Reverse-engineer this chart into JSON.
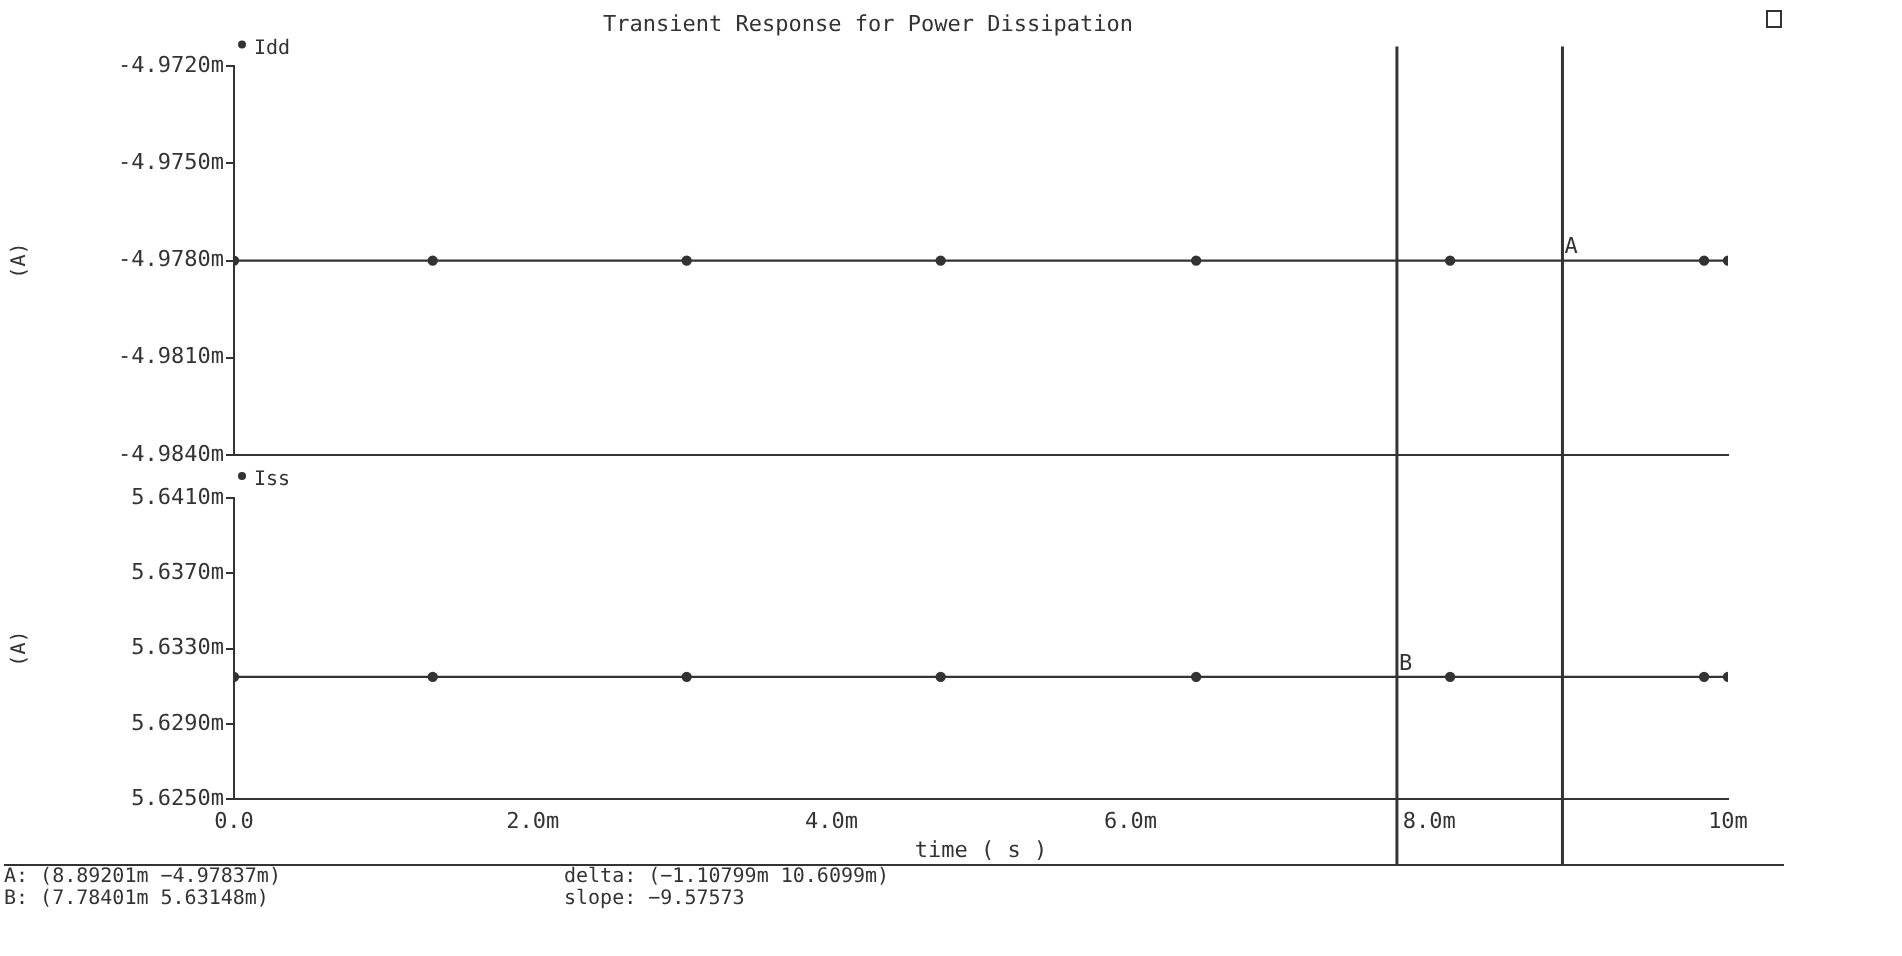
{
  "chart_data": [
    {
      "type": "line",
      "title": "Transient Response for Power Dissipation",
      "ylabel": "(A)",
      "series": [
        {
          "name": "Idd",
          "color": "#333333",
          "x": [
            0,
            1.33,
            3.03,
            4.73,
            6.44,
            8.14,
            9.84,
            10
          ],
          "values": [
            -4.978,
            -4.978,
            -4.978,
            -4.978,
            -4.978,
            -4.978,
            -4.978,
            -4.978
          ]
        }
      ],
      "xlim": [
        0,
        10
      ],
      "xticks": [
        {
          "value": 0,
          "label": null
        },
        {
          "value": 2,
          "label": null
        },
        {
          "value": 4,
          "label": null
        },
        {
          "value": 6,
          "label": null
        },
        {
          "value": 8,
          "label": null
        },
        {
          "value": 10,
          "label": null
        }
      ],
      "ylim": [
        -4.984,
        -4.972
      ],
      "yticks": [
        {
          "value": -4.984,
          "label": "-4.9840m"
        },
        {
          "value": -4.981,
          "label": "-4.9810m"
        },
        {
          "value": -4.978,
          "label": "-4.9780m"
        },
        {
          "value": -4.975,
          "label": "-4.9750m"
        },
        {
          "value": -4.972,
          "label": "-4.9720m"
        }
      ],
      "ref_lines": [
        {
          "axis": "x",
          "value": 7.784,
          "color": "#333333"
        },
        {
          "axis": "x",
          "value": 8.892,
          "color": "#333333"
        }
      ],
      "annotations": [
        {
          "text": "A",
          "x": 8.892,
          "y": -4.978
        }
      ],
      "tick_labels": "y",
      "legend": "top left",
      "marker": "circle",
      "grid": false
    },
    {
      "type": "line",
      "xlabel": "time ( s )",
      "ylabel": "(A)",
      "series": [
        {
          "name": "Iss",
          "color": "#333333",
          "x": [
            0,
            1.33,
            3.03,
            4.73,
            6.44,
            8.14,
            9.84,
            10
          ],
          "values": [
            5.6315,
            5.6315,
            5.6315,
            5.6315,
            5.6315,
            5.6315,
            5.6315,
            5.6315
          ]
        }
      ],
      "xlim": [
        0,
        10
      ],
      "xticks": [
        {
          "value": 0,
          "label": "0.0"
        },
        {
          "value": 2,
          "label": "2.0m"
        },
        {
          "value": 4,
          "label": "4.0m"
        },
        {
          "value": 6,
          "label": "6.0m"
        },
        {
          "value": 8,
          "label": "8.0m"
        },
        {
          "value": 10,
          "label": "10m"
        }
      ],
      "ylim": [
        5.625,
        5.641
      ],
      "yticks": [
        {
          "value": 5.625,
          "label": "5.6250m"
        },
        {
          "value": 5.629,
          "label": "5.6290m"
        },
        {
          "value": 5.633,
          "label": "5.6330m"
        },
        {
          "value": 5.637,
          "label": "5.6370m"
        },
        {
          "value": 5.641,
          "label": "5.6410m"
        }
      ],
      "ref_lines": [
        {
          "axis": "x",
          "value": 7.784,
          "color": "#333333"
        },
        {
          "axis": "x",
          "value": 8.892,
          "color": "#333333"
        }
      ],
      "annotations": [
        {
          "text": "B",
          "x": 7.784,
          "y": 5.6315
        },
        "A: (8.89201m −4.97837m)",
        "delta: (−1.10799m 10.6099m)",
        "B: (7.78401m 5.63148m)",
        "slope: −9.57573"
      ],
      "legend": "top left",
      "marker": "circle",
      "grid": false
    }
  ]
}
